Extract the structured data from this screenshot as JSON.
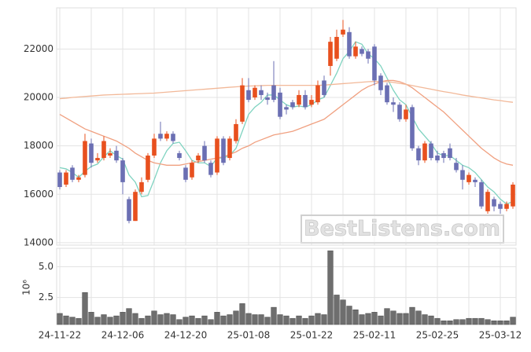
{
  "chart_data": [
    {
      "type": "candlestick",
      "open": [
        16900,
        16400,
        17100,
        16600,
        16800,
        18100,
        17400,
        17500,
        17600,
        17800,
        17400,
        15800,
        14900,
        16100,
        16600,
        17600,
        18500,
        18300,
        18500,
        17700,
        17100,
        16700,
        17400,
        18000,
        17300,
        16900,
        18300,
        17500,
        18200,
        19000,
        20300,
        20000,
        20300,
        20000,
        20500,
        20200,
        19600,
        19800,
        19700,
        20100,
        19700,
        19800,
        20700,
        21300,
        21600,
        22600,
        22700,
        21700,
        22000,
        21900,
        22100,
        20900,
        20500,
        19800,
        19700,
        19100,
        19600,
        17900,
        17400,
        18100,
        17600,
        17700,
        17900,
        17300,
        17000,
        16500,
        16600,
        16500,
        15300,
        15800,
        15600,
        15400,
        15500
      ],
      "high": [
        17000,
        17000,
        17200,
        16800,
        18500,
        18300,
        17700,
        18400,
        17900,
        18000,
        17500,
        15900,
        16200,
        16700,
        17700,
        18500,
        19000,
        18600,
        18600,
        17800,
        17200,
        17400,
        17700,
        18200,
        17400,
        18400,
        18400,
        18400,
        19100,
        20800,
        20800,
        20500,
        20500,
        20200,
        21500,
        20400,
        19700,
        19900,
        20300,
        20300,
        20100,
        20700,
        20900,
        22500,
        22800,
        23200,
        22900,
        22300,
        22100,
        22000,
        22200,
        21000,
        20600,
        20000,
        19800,
        19700,
        19700,
        18000,
        18200,
        18200,
        17800,
        17800,
        18100,
        17500,
        17200,
        16900,
        16700,
        16600,
        16200,
        15900,
        15700,
        15700,
        16500
      ],
      "low": [
        16200,
        16300,
        16500,
        16500,
        16700,
        17100,
        17300,
        17400,
        17500,
        17300,
        16000,
        14800,
        14900,
        16000,
        16500,
        17500,
        18200,
        18200,
        18100,
        17400,
        16500,
        16600,
        17300,
        17300,
        16700,
        16800,
        17200,
        17400,
        18100,
        18900,
        19800,
        19900,
        19900,
        19700,
        19800,
        19100,
        19300,
        19500,
        19600,
        19500,
        19600,
        19700,
        20000,
        20900,
        21500,
        22500,
        21600,
        21600,
        21700,
        21400,
        20500,
        20100,
        19700,
        19400,
        19000,
        19000,
        17800,
        17200,
        17300,
        17400,
        17300,
        17300,
        17400,
        16900,
        16200,
        16400,
        16300,
        15400,
        15200,
        15300,
        15200,
        15300,
        15400
      ],
      "close": [
        16300,
        16900,
        16600,
        16700,
        18200,
        17300,
        17500,
        18200,
        17700,
        17400,
        16500,
        14900,
        16100,
        16500,
        17600,
        18300,
        18300,
        18500,
        18200,
        17500,
        16600,
        17300,
        17600,
        17400,
        16800,
        18300,
        17300,
        18300,
        18900,
        20500,
        19900,
        20400,
        20100,
        19900,
        19900,
        19200,
        19500,
        19600,
        20100,
        19600,
        19900,
        20500,
        20100,
        22300,
        22500,
        22800,
        21700,
        22100,
        21800,
        21600,
        20700,
        20300,
        19800,
        19700,
        19100,
        19500,
        17900,
        17400,
        18100,
        17500,
        17400,
        17500,
        17500,
        17000,
        16600,
        16800,
        16500,
        15500,
        16100,
        15500,
        15400,
        15600,
        16400
      ],
      "up_color": "#e8501e",
      "down_color": "#6b6fb3",
      "series": [
        {
          "color": "#7fd3c0",
          "values": [
            17100,
            17050,
            16900,
            16700,
            16950,
            17150,
            17250,
            17550,
            17800,
            17600,
            17450,
            16800,
            16500,
            15900,
            15950,
            16600,
            17300,
            17800,
            18100,
            18150,
            17800,
            17400,
            17300,
            17300,
            17150,
            17500,
            17500,
            17600,
            17900,
            18600,
            19300,
            19600,
            19800,
            20100,
            20100,
            19900,
            19700,
            19600,
            19650,
            19600,
            19700,
            19900,
            20000,
            20500,
            21000,
            21600,
            21900,
            22300,
            22200,
            21800,
            21600,
            21300,
            20800,
            20300,
            19900,
            19700,
            19200,
            18700,
            18400,
            18100,
            17700,
            17600,
            17600,
            17400,
            17200,
            17100,
            16900,
            16600,
            16300,
            16100,
            15800,
            15600,
            15700
          ]
        },
        {
          "color": "#f0a080",
          "values": [
            19300,
            19150,
            19000,
            18850,
            18700,
            18600,
            18500,
            18400,
            18300,
            18200,
            18050,
            17900,
            17700,
            17550,
            17400,
            17300,
            17250,
            17200,
            17200,
            17200,
            17250,
            17300,
            17350,
            17400,
            17450,
            17500,
            17550,
            17650,
            17750,
            17900,
            18000,
            18150,
            18250,
            18350,
            18450,
            18500,
            18550,
            18600,
            18700,
            18800,
            18900,
            19000,
            19100,
            19300,
            19500,
            19700,
            19900,
            20100,
            20300,
            20450,
            20550,
            20650,
            20700,
            20700,
            20650,
            20550,
            20400,
            20200,
            20000,
            19800,
            19600,
            19400,
            19150,
            18900,
            18650,
            18400,
            18150,
            17900,
            17700,
            17500,
            17350,
            17250,
            17200
          ]
        },
        {
          "color": "#f2b898",
          "values": [
            19950,
            19970,
            20000,
            20020,
            20040,
            20060,
            20080,
            20100,
            20110,
            20120,
            20130,
            20140,
            20150,
            20160,
            20170,
            20180,
            20200,
            20220,
            20240,
            20260,
            20280,
            20300,
            20320,
            20340,
            20360,
            20380,
            20400,
            20420,
            20440,
            20460,
            20470,
            20480,
            20490,
            20500,
            20500,
            20500,
            20500,
            20500,
            20500,
            20500,
            20500,
            20500,
            20510,
            20530,
            20550,
            20570,
            20590,
            20610,
            20630,
            20650,
            20660,
            20660,
            20650,
            20620,
            20580,
            20540,
            20490,
            20440,
            20390,
            20340,
            20290,
            20240,
            20200,
            20150,
            20100,
            20060,
            20020,
            19980,
            19940,
            19900,
            19870,
            19830,
            19800
          ]
        }
      ],
      "ylim": [
        13900,
        23700
      ],
      "yticks": [
        14000,
        16000,
        18000,
        20000,
        22000
      ],
      "grid": true,
      "annotation": "BestListens.com"
    },
    {
      "type": "bar",
      "ylabel": "10⁶",
      "categories": [
        "24-11-22",
        null,
        null,
        null,
        null,
        null,
        null,
        null,
        null,
        null,
        "24-12-06",
        null,
        null,
        null,
        null,
        null,
        null,
        null,
        null,
        null,
        "24-12-20",
        null,
        null,
        null,
        null,
        null,
        null,
        null,
        null,
        null,
        "25-01-08",
        null,
        null,
        null,
        null,
        null,
        null,
        null,
        null,
        null,
        "25-01-22",
        null,
        null,
        null,
        null,
        null,
        null,
        null,
        null,
        null,
        "25-02-11",
        null,
        null,
        null,
        null,
        null,
        null,
        null,
        null,
        null,
        "25-02-25",
        null,
        null,
        null,
        null,
        null,
        null,
        null,
        null,
        null,
        "25-03-12",
        null,
        null
      ],
      "values": [
        1.2,
        1.0,
        0.9,
        0.8,
        2.9,
        1.3,
        0.9,
        1.1,
        0.9,
        1.0,
        1.3,
        1.6,
        1.2,
        0.8,
        1.0,
        1.4,
        1.1,
        1.2,
        1.1,
        0.7,
        0.9,
        1.0,
        0.8,
        1.0,
        0.7,
        1.3,
        1.0,
        1.1,
        1.4,
        2.0,
        1.2,
        1.1,
        1.1,
        0.9,
        1.7,
        1.1,
        1.0,
        0.8,
        1.0,
        0.8,
        1.0,
        1.2,
        1.1,
        6.3,
        2.7,
        2.3,
        1.8,
        1.5,
        1.1,
        1.2,
        1.3,
        1.0,
        1.6,
        1.4,
        1.2,
        1.2,
        1.7,
        1.4,
        1.1,
        1.0,
        0.8,
        0.6,
        0.6,
        0.7,
        0.7,
        0.8,
        0.8,
        0.8,
        0.7,
        0.6,
        0.6,
        0.6,
        0.9
      ],
      "color": "#6e6e6e",
      "ylim": [
        0.3,
        6.5
      ],
      "yticks": [
        2.5,
        {
          "value": 5,
          "label": "5.0"
        }
      ],
      "grid": true
    }
  ]
}
